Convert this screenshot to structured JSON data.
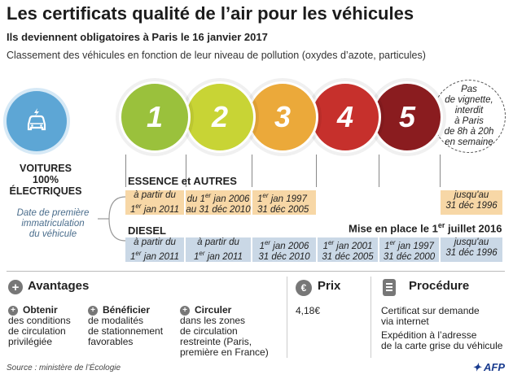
{
  "header": {
    "title": "Les certificats qualité de l’air pour les véhicules",
    "subtitle": "Ils deviennent obligatoires à Paris le 16 janvier 2017",
    "intro": "Classement des véhicules en fonction de leur niveau de pollution (oxydes d’azote, particules)"
  },
  "electric": {
    "icon": "electric-car-icon",
    "label_line1": "VOITURES",
    "label_line2": "100%",
    "label_line3": "ÉLECTRIQUES",
    "color": "#5da6d5"
  },
  "certificates": [
    {
      "number": "1",
      "color": "#9ac13c"
    },
    {
      "number": "2",
      "color": "#c8d435"
    },
    {
      "number": "3",
      "color": "#eba93a"
    },
    {
      "number": "4",
      "color": "#c6302c"
    },
    {
      "number": "5",
      "color": "#8a1c1f"
    }
  ],
  "no_vignette": {
    "l1": "Pas",
    "l2": "de vignette,",
    "l3": "interdit",
    "l4": "à Paris",
    "l5": "de 8h à 20h",
    "l6": "en semaine"
  },
  "first_registration_note": {
    "l1": "Date de première",
    "l2": "immatriculation",
    "l3": "du véhicule"
  },
  "essence": {
    "label": "ESSENCE et AUTRES",
    "cells": [
      {
        "l1": "à partir du",
        "l2a": "1",
        "l2sup": "er",
        "l2b": " jan 2011"
      },
      {
        "l1a": "du 1",
        "l1sup": "er",
        "l1b": " jan 2006",
        "l2": "au 31 déc 2010"
      },
      {
        "l1a": "1",
        "l1sup": "er",
        "l1b": "  jan 1997",
        "l2": "31 déc 2005"
      },
      {
        "l1": "jusqu'au",
        "l2": "31 déc 1996"
      }
    ],
    "color": "#f7d7a6"
  },
  "diesel": {
    "label": "DIESEL",
    "start_a": "Mise en place le 1",
    "start_sup": "er",
    "start_b": " juillet 2016",
    "cells": [
      {
        "l1": "à partir du",
        "l2a": "1",
        "l2sup": "er",
        "l2b": " jan 2011"
      },
      {
        "l1": "à partir du",
        "l2a": "1",
        "l2sup": "er",
        "l2b": " jan 2011"
      },
      {
        "l1a": "1",
        "l1sup": "er",
        "l1b": " jan 2006",
        "l2": "31 déc 2010"
      },
      {
        "l1a": "1",
        "l1sup": "er",
        "l1b": " jan 2001",
        "l2": "31 déc 2005"
      },
      {
        "l1a": "1",
        "l1sup": "er",
        "l1b": " jan 1997",
        "l2": "31 déc 2000"
      },
      {
        "l1": "jusqu'au",
        "l2": "31 déc 1996"
      }
    ],
    "color": "#cad8e6"
  },
  "avantages": {
    "title": "Avantages",
    "items": [
      {
        "bold": "Obtenir",
        "l1": "des conditions",
        "l2": "de circulation",
        "l3": "privilégiée"
      },
      {
        "bold": "Bénéficier",
        "l1": "de modalités",
        "l2": "de stationnement",
        "l3": "favorables"
      },
      {
        "bold": "Circuler",
        "l1": "dans les zones",
        "l2": "de circulation",
        "l3": "restreinte (Paris,",
        "l4": "première en France)"
      }
    ]
  },
  "prix": {
    "title": "Prix",
    "icon": "euro-icon",
    "value": "4,18€"
  },
  "procedure": {
    "title": "Procédure",
    "icon": "document-icon",
    "p1_l1": "Certificat sur demande",
    "p1_l2": "via internet",
    "p2_l1": "Expédition à l’adresse",
    "p2_l2": "de la carte grise du véhicule"
  },
  "footer": {
    "source": "Source : ministère de l’Écologie",
    "brand": "AFP"
  }
}
